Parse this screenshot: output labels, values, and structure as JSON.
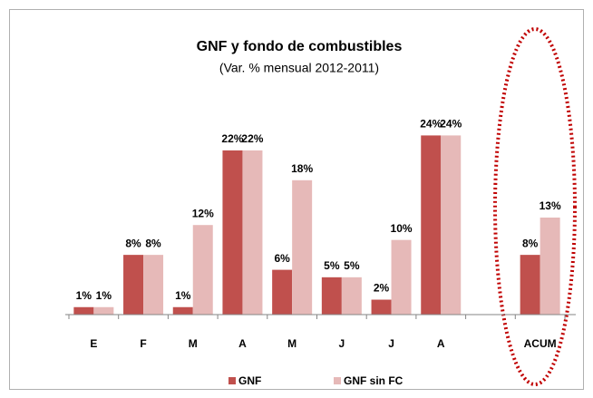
{
  "chart_data": {
    "type": "bar",
    "title": "GNF y fondo de combustibles",
    "subtitle": "(Var. % mensual 2012-2011)",
    "categories": [
      "E",
      "F",
      "M",
      "A",
      "M",
      "J",
      "J",
      "A",
      null,
      "ACUM"
    ],
    "series": [
      {
        "name": "GNF",
        "color": "#c0504d",
        "values": [
          1,
          8,
          1,
          22,
          6,
          5,
          2,
          24,
          null,
          8
        ],
        "value_labels": [
          "1%",
          "8%",
          "1%",
          "22%",
          "6%",
          "5%",
          "2%",
          "24%",
          null,
          "8%"
        ]
      },
      {
        "name": "GNF sin FC",
        "color": "#e6b9b8",
        "values": [
          1,
          8,
          12,
          22,
          18,
          5,
          10,
          24,
          null,
          13
        ],
        "value_labels": [
          "1%",
          "8%",
          "12%",
          "22%",
          "18%",
          "5%",
          "10%",
          "24%",
          null,
          "13%"
        ]
      }
    ],
    "ylim": [
      0,
      30
    ],
    "legend": "bottom"
  }
}
